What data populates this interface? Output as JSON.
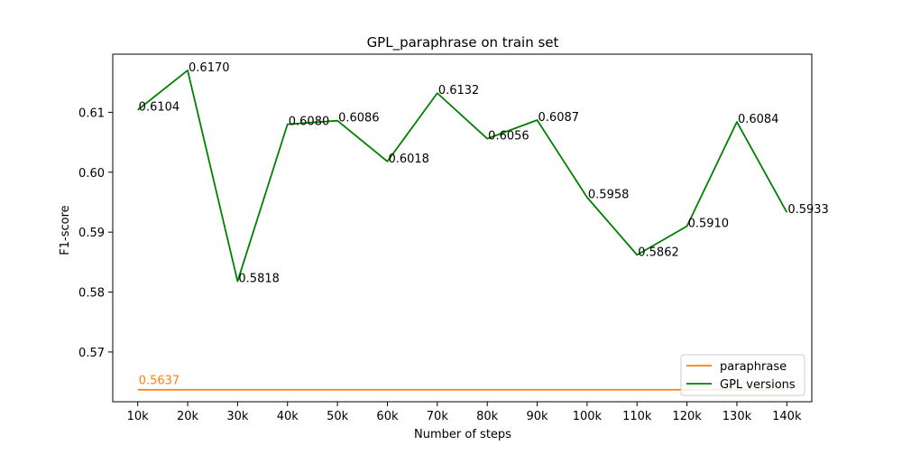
{
  "chart_data": {
    "type": "line",
    "title": "GPL_paraphrase on train set",
    "xlabel": "Number of steps",
    "ylabel": "F1-score",
    "categories": [
      "10k",
      "20k",
      "30k",
      "40k",
      "50k",
      "60k",
      "70k",
      "80k",
      "90k",
      "100k",
      "110k",
      "120k",
      "130k",
      "140k"
    ],
    "ylim": [
      0.5617,
      0.6197
    ],
    "yticks": [
      0.57,
      0.58,
      0.59,
      0.6,
      0.61
    ],
    "ytick_labels": [
      "0.57",
      "0.58",
      "0.59",
      "0.60",
      "0.61"
    ],
    "grid": false,
    "legend_position": "bottom-right",
    "series": [
      {
        "name": "paraphrase",
        "color": "#ff7f0e",
        "values": [
          0.5637,
          0.5637,
          0.5637,
          0.5637,
          0.5637,
          0.5637,
          0.5637,
          0.5637,
          0.5637,
          0.5637,
          0.5637,
          0.5637,
          0.5637,
          0.5637
        ],
        "labels": [
          "0.5637"
        ],
        "label_indices": [
          0
        ]
      },
      {
        "name": "GPL versions",
        "color": "#008000",
        "values": [
          0.6104,
          0.617,
          0.5818,
          0.608,
          0.6086,
          0.6018,
          0.6132,
          0.6056,
          0.6087,
          0.5958,
          0.5862,
          0.591,
          0.6084,
          0.5933
        ],
        "labels": [
          "0.6104",
          "0.6170",
          "0.5818",
          "0.6080",
          "0.6086",
          "0.6018",
          "0.6132",
          "0.6056",
          "0.6087",
          "0.5958",
          "0.5862",
          "0.5910",
          "0.6084",
          "0.5933"
        ],
        "label_indices": [
          0,
          1,
          2,
          3,
          4,
          5,
          6,
          7,
          8,
          9,
          10,
          11,
          12,
          13
        ]
      }
    ]
  }
}
